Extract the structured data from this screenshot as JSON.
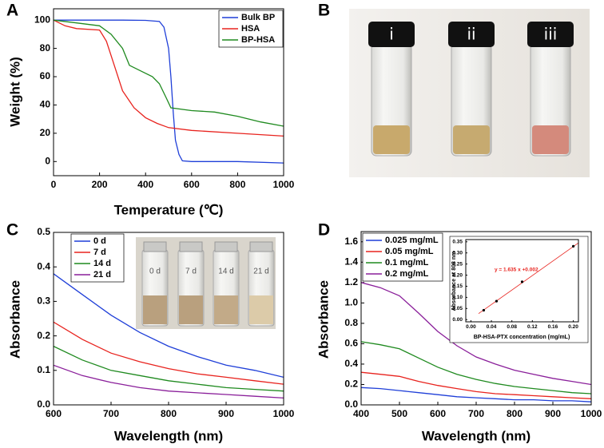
{
  "panels": [
    "A",
    "B",
    "C",
    "D"
  ],
  "photos": [
    {
      "labels": [
        "i",
        "ii",
        "iii"
      ]
    },
    {
      "labels": [
        "0 d",
        "7 d",
        "14 d",
        "21 d"
      ]
    }
  ],
  "chart_data": [
    {
      "type": "line",
      "xlabel": "Temperature (℃)",
      "ylabel": "Weight (%)",
      "xlim": [
        0,
        1000
      ],
      "xticks": [
        0,
        200,
        400,
        600,
        800,
        1000
      ],
      "ylim": [
        -10,
        108
      ],
      "yticks": [
        0,
        20,
        40,
        60,
        80,
        100
      ],
      "grid": false,
      "legend": "upper right",
      "series": [
        {
          "name": "Bulk BP",
          "color": "#1f3fd8",
          "x": [
            0,
            100,
            200,
            300,
            400,
            460,
            480,
            500,
            510,
            520,
            530,
            545,
            560,
            600,
            800,
            1000
          ],
          "values": [
            100,
            100,
            100,
            100,
            99.8,
            99,
            95,
            80,
            60,
            35,
            15,
            5,
            0.5,
            0,
            0,
            -1
          ]
        },
        {
          "name": "HSA",
          "color": "#e8231e",
          "x": [
            0,
            50,
            100,
            200,
            230,
            260,
            300,
            350,
            400,
            450,
            500,
            600,
            800,
            1000
          ],
          "values": [
            100,
            96,
            94,
            93,
            85,
            70,
            50,
            38,
            31,
            27,
            24,
            22,
            20,
            18
          ]
        },
        {
          "name": "BP-HSA",
          "color": "#1f8a1f",
          "x": [
            0,
            100,
            200,
            250,
            300,
            330,
            380,
            430,
            460,
            490,
            510,
            600,
            700,
            800,
            900,
            1000
          ],
          "values": [
            100,
            98,
            96,
            90,
            80,
            68,
            64,
            60,
            55,
            45,
            38,
            36,
            35,
            32,
            28,
            25
          ]
        }
      ]
    },
    {
      "type": "line",
      "xlabel": "Wavelength (nm)",
      "ylabel": "Absorbance",
      "xlim": [
        600,
        1000
      ],
      "xticks": [
        600,
        700,
        800,
        900,
        1000
      ],
      "ylim": [
        0,
        0.5
      ],
      "yticks": [
        {
          "value": 0,
          "label": "0.0"
        },
        0.1,
        0.2,
        0.3,
        0.4,
        0.5
      ],
      "grid": false,
      "legend": "upper left",
      "x": [
        600,
        650,
        700,
        750,
        800,
        850,
        900,
        950,
        1000
      ],
      "series": [
        {
          "name": "0 d",
          "color": "#1f3fd8",
          "values": [
            0.38,
            0.32,
            0.26,
            0.21,
            0.17,
            0.14,
            0.115,
            0.1,
            0.08
          ]
        },
        {
          "name": "7 d",
          "color": "#e8231e",
          "values": [
            0.24,
            0.19,
            0.15,
            0.125,
            0.105,
            0.09,
            0.08,
            0.07,
            0.06
          ]
        },
        {
          "name": "14 d",
          "color": "#1f8a1f",
          "values": [
            0.17,
            0.13,
            0.1,
            0.085,
            0.07,
            0.06,
            0.05,
            0.045,
            0.04
          ]
        },
        {
          "name": "21 d",
          "color": "#8a1f9a",
          "values": [
            0.115,
            0.085,
            0.065,
            0.05,
            0.04,
            0.035,
            0.03,
            0.025,
            0.02
          ]
        }
      ]
    },
    {
      "type": "line",
      "xlabel": "Wavelength (nm)",
      "ylabel": "Absorbance",
      "xlim": [
        400,
        1000
      ],
      "xticks": [
        400,
        500,
        600,
        700,
        800,
        900,
        1000
      ],
      "ylim": [
        0,
        1.7
      ],
      "yticks": [
        {
          "value": 0,
          "label": "0.0"
        },
        0.2,
        0.4,
        0.6,
        0.8,
        {
          "value": 1,
          "label": "1.0"
        },
        1.2,
        1.4,
        1.6
      ],
      "grid": false,
      "legend": "upper left",
      "x": [
        400,
        450,
        500,
        550,
        600,
        650,
        700,
        750,
        800,
        850,
        900,
        950,
        1000
      ],
      "series": [
        {
          "name": "0.025 mg/mL",
          "color": "#1f3fd8",
          "values": [
            0.17,
            0.16,
            0.14,
            0.12,
            0.1,
            0.08,
            0.07,
            0.06,
            0.05,
            0.05,
            0.04,
            0.04,
            0.03
          ]
        },
        {
          "name": "0.05 mg/mL",
          "color": "#e8231e",
          "values": [
            0.32,
            0.3,
            0.28,
            0.23,
            0.19,
            0.16,
            0.13,
            0.11,
            0.1,
            0.09,
            0.08,
            0.07,
            0.06
          ]
        },
        {
          "name": "0.1 mg/mL",
          "color": "#1f8a1f",
          "values": [
            0.62,
            0.59,
            0.55,
            0.46,
            0.37,
            0.3,
            0.25,
            0.21,
            0.18,
            0.16,
            0.14,
            0.12,
            0.11
          ]
        },
        {
          "name": "0.2 mg/mL",
          "color": "#8a1f9a",
          "values": [
            1.2,
            1.15,
            1.07,
            0.9,
            0.72,
            0.58,
            0.47,
            0.4,
            0.34,
            0.3,
            0.26,
            0.23,
            0.2
          ]
        }
      ]
    },
    {
      "type": "scatter",
      "xlabel": "BP-HSA-PTX concentration (mg/mL)",
      "ylabel": "Absorbance at 808 nm",
      "annotation": "y = 1.635 x +0.002",
      "xlim": [
        -0.01,
        0.21
      ],
      "xticks": [
        {
          "value": 0,
          "label": "0.00"
        },
        0.04,
        0.08,
        0.12,
        0.16,
        {
          "value": 0.2,
          "label": "0.20"
        }
      ],
      "ylim": [
        -0.01,
        0.36
      ],
      "yticks": [
        {
          "value": 0,
          "label": "0.00"
        },
        0.05,
        {
          "value": 0.1,
          "label": "0.10"
        },
        0.15,
        {
          "value": 0.2,
          "label": "0.20"
        },
        0.25,
        {
          "value": 0.3,
          "label": "0.30"
        },
        0.35
      ],
      "x": [
        0.025,
        0.05,
        0.1,
        0.2
      ],
      "values": [
        0.042,
        0.083,
        0.17,
        0.33
      ],
      "color": "#000000",
      "fit": {
        "x": [
          0.015,
          0.21
        ],
        "values": [
          0.027,
          0.345
        ],
        "color": "#e8231e"
      }
    }
  ]
}
